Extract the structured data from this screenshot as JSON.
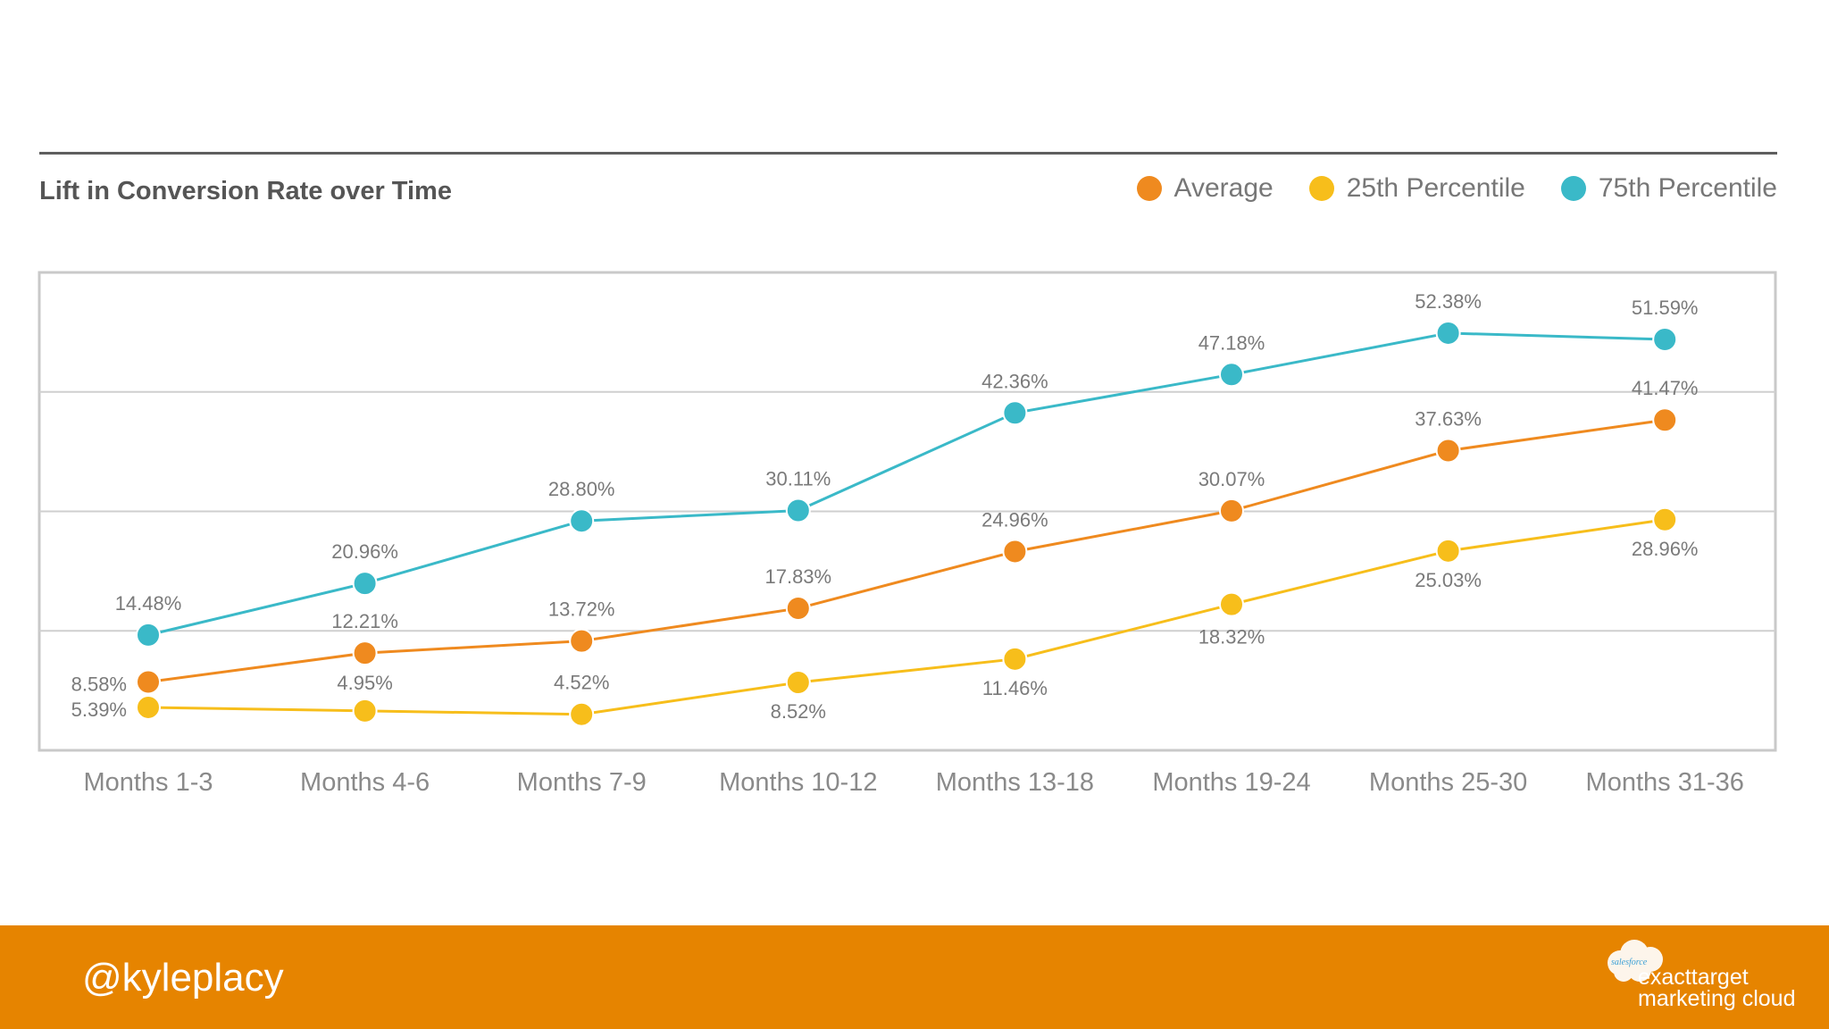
{
  "chart_data": {
    "type": "line",
    "title": "Lift in Conversion Rate over Time",
    "categories": [
      "Months 1-3",
      "Months 4-6",
      "Months 7-9",
      "Months 10-12",
      "Months 13-18",
      "Months 19-24",
      "Months 25-30",
      "Months 31-36"
    ],
    "ylim": [
      0,
      60
    ],
    "grid": true,
    "legend_position": "top-right",
    "series": [
      {
        "name": "Average",
        "color": "#ef8a1f",
        "values": [
          8.58,
          12.21,
          13.72,
          17.83,
          24.96,
          30.07,
          37.63,
          41.47
        ],
        "labels": [
          "8.58%",
          "12.21%",
          "13.72%",
          "17.83%",
          "24.96%",
          "30.07%",
          "37.63%",
          "41.47%"
        ]
      },
      {
        "name": "25th Percentile",
        "color": "#f7be1b",
        "values": [
          5.39,
          4.95,
          4.52,
          8.52,
          11.46,
          18.32,
          25.03,
          28.96
        ],
        "labels": [
          "5.39%",
          "4.95%",
          "4.52%",
          "8.52%",
          "11.46%",
          "18.32%",
          "25.03%",
          "28.96%"
        ]
      },
      {
        "name": "75th Percentile",
        "color": "#3ab9c8",
        "values": [
          14.48,
          20.96,
          28.8,
          30.11,
          42.36,
          47.18,
          52.38,
          51.59
        ],
        "labels": [
          "14.48%",
          "20.96%",
          "28.80%",
          "30.11%",
          "42.36%",
          "47.18%",
          "52.38%",
          "51.59%"
        ]
      }
    ]
  },
  "footer": {
    "handle": "@kyleplacy",
    "logo_small_text": "salesforce",
    "logo_line1": "exacttarget",
    "logo_line2": "marketing cloud"
  },
  "colors": {
    "footer_bg": "#e68400",
    "grid": "#cfcfcf",
    "frame": "#c9c9c9"
  }
}
